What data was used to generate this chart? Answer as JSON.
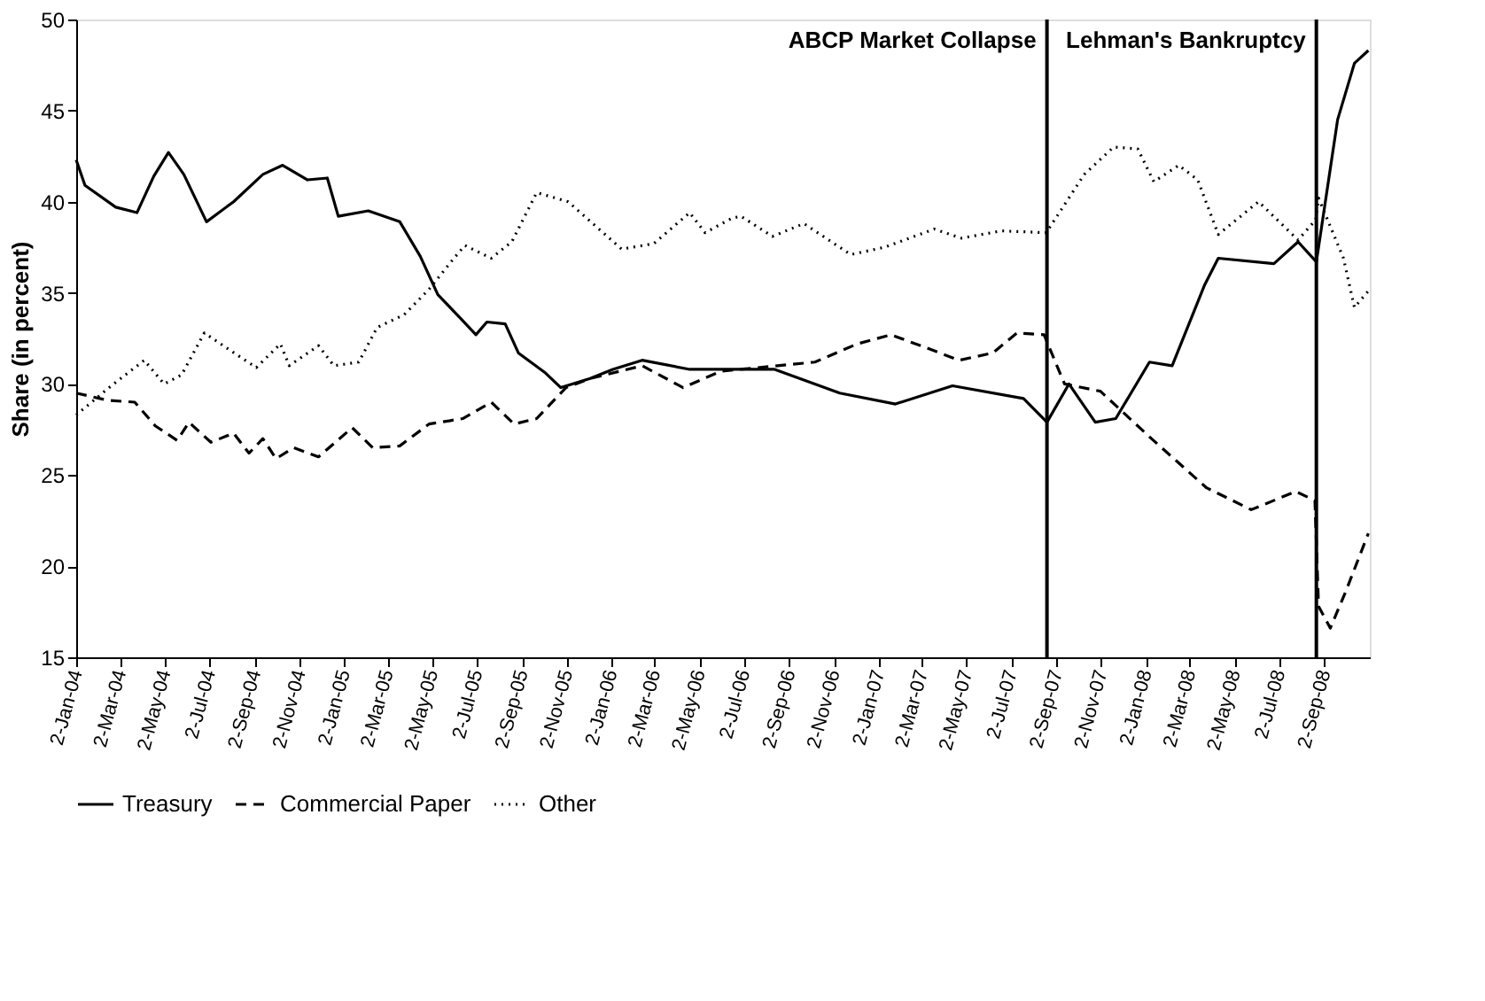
{
  "chart_data": {
    "type": "line",
    "ylabel": "Share (in percent)",
    "xlim": [
      "2004-01-02",
      "2008-11-03"
    ],
    "xticks": [
      {
        "value": "2004-01-02",
        "label": "2-Jan-04"
      },
      {
        "value": "2004-03-02",
        "label": "2-Mar-04"
      },
      {
        "value": "2004-05-02",
        "label": "2-May-04"
      },
      {
        "value": "2004-07-02",
        "label": "2-Jul-04"
      },
      {
        "value": "2004-09-02",
        "label": "2-Sep-04"
      },
      {
        "value": "2004-11-02",
        "label": "2-Nov-04"
      },
      {
        "value": "2005-01-02",
        "label": "2-Jan-05"
      },
      {
        "value": "2005-03-02",
        "label": "2-Mar-05"
      },
      {
        "value": "2005-05-02",
        "label": "2-May-05"
      },
      {
        "value": "2005-07-02",
        "label": "2-Jul-05"
      },
      {
        "value": "2005-09-02",
        "label": "2-Sep-05"
      },
      {
        "value": "2005-11-02",
        "label": "2-Nov-05"
      },
      {
        "value": "2006-01-02",
        "label": "2-Jan-06"
      },
      {
        "value": "2006-03-02",
        "label": "2-Mar-06"
      },
      {
        "value": "2006-05-02",
        "label": "2-May-06"
      },
      {
        "value": "2006-07-02",
        "label": "2-Jul-06"
      },
      {
        "value": "2006-09-02",
        "label": "2-Sep-06"
      },
      {
        "value": "2006-11-02",
        "label": "2-Nov-06"
      },
      {
        "value": "2007-01-02",
        "label": "2-Jan-07"
      },
      {
        "value": "2007-03-02",
        "label": "2-Mar-07"
      },
      {
        "value": "2007-05-02",
        "label": "2-May-07"
      },
      {
        "value": "2007-07-02",
        "label": "2-Jul-07"
      },
      {
        "value": "2007-09-02",
        "label": "2-Sep-07"
      },
      {
        "value": "2007-11-02",
        "label": "2-Nov-07"
      },
      {
        "value": "2008-01-02",
        "label": "2-Jan-08"
      },
      {
        "value": "2008-03-02",
        "label": "2-Mar-08"
      },
      {
        "value": "2008-05-02",
        "label": "2-May-08"
      },
      {
        "value": "2008-07-02",
        "label": "2-Jul-08"
      },
      {
        "value": "2008-09-02",
        "label": "2-Sep-08"
      }
    ],
    "ylim": [
      15,
      50
    ],
    "yticks": [
      15,
      20,
      25,
      30,
      35,
      40,
      45,
      50
    ],
    "grid": false,
    "legend": "bottom",
    "series": [
      {
        "name": "Treasury",
        "color": "#000000",
        "line_style": "solid",
        "x": [
          "2004-01-02",
          "2004-01-14",
          "2004-02-25",
          "2004-03-25",
          "2004-04-17",
          "2004-05-07",
          "2004-05-28",
          "2004-06-28",
          "2004-08-04",
          "2004-09-13",
          "2004-10-10",
          "2004-11-13",
          "2004-12-10",
          "2004-12-25",
          "2005-02-04",
          "2005-03-19",
          "2005-04-16",
          "2005-05-10",
          "2005-06-10",
          "2005-07-01",
          "2005-07-16",
          "2005-08-10",
          "2005-08-28",
          "2005-10-04",
          "2005-10-25",
          "2005-12-04",
          "2006-01-04",
          "2006-02-13",
          "2006-04-19",
          "2006-08-13",
          "2006-11-10",
          "2007-01-25",
          "2007-04-13",
          "2007-07-19",
          "2007-08-20",
          "2007-09-19",
          "2007-10-25",
          "2007-11-22",
          "2008-01-07",
          "2008-02-07",
          "2008-03-22",
          "2008-04-10",
          "2008-06-25",
          "2008-07-28",
          "2008-08-22",
          "2008-09-20",
          "2008-10-13",
          "2008-11-01"
        ],
        "values": [
          42.3,
          40.9,
          39.7,
          39.4,
          41.4,
          42.7,
          41.5,
          38.9,
          40.0,
          41.5,
          42.0,
          41.2,
          41.3,
          39.2,
          39.5,
          38.9,
          37.0,
          34.9,
          33.6,
          32.7,
          33.4,
          33.3,
          31.7,
          30.6,
          29.8,
          30.3,
          30.8,
          31.3,
          30.8,
          30.8,
          29.5,
          28.9,
          29.9,
          29.2,
          27.9,
          30.0,
          27.9,
          28.1,
          31.2,
          31.0,
          35.4,
          36.9,
          36.6,
          37.8,
          36.7,
          44.5,
          47.6,
          48.3
        ]
      },
      {
        "name": "Commercial Paper",
        "color": "#000000",
        "line_style": "dashed",
        "x": [
          "2004-01-02",
          "2004-02-14",
          "2004-03-22",
          "2004-04-19",
          "2004-05-19",
          "2004-06-04",
          "2004-07-04",
          "2004-08-04",
          "2004-08-25",
          "2004-09-13",
          "2004-10-01",
          "2004-10-25",
          "2004-11-28",
          "2005-01-13",
          "2005-02-10",
          "2005-03-19",
          "2005-04-28",
          "2005-06-13",
          "2005-07-22",
          "2005-08-22",
          "2005-09-22",
          "2005-11-01",
          "2005-12-04",
          "2006-02-13",
          "2006-04-10",
          "2006-06-01",
          "2006-10-07",
          "2006-12-04",
          "2007-01-19",
          "2007-03-07",
          "2007-04-22",
          "2007-06-07",
          "2007-07-10",
          "2007-08-16",
          "2007-09-13",
          "2007-11-01",
          "2008-01-07",
          "2008-03-25",
          "2008-05-25",
          "2008-07-25",
          "2008-08-20",
          "2008-08-25",
          "2008-09-10",
          "2008-10-01",
          "2008-11-01"
        ],
        "values": [
          29.5,
          29.1,
          29.0,
          27.7,
          26.9,
          27.9,
          26.8,
          27.3,
          26.2,
          27.0,
          25.9,
          26.5,
          26.0,
          27.6,
          26.5,
          26.6,
          27.8,
          28.1,
          29.0,
          27.8,
          28.1,
          29.8,
          30.3,
          31.0,
          29.8,
          30.7,
          31.2,
          32.2,
          32.7,
          32.0,
          31.3,
          31.7,
          32.8,
          32.7,
          30.0,
          29.6,
          27.1,
          24.3,
          23.1,
          24.1,
          23.6,
          17.8,
          16.6,
          18.6,
          21.8
        ]
      },
      {
        "name": "Other",
        "color": "#000000",
        "line_style": "dotted",
        "x": [
          "2004-01-02",
          "2004-02-19",
          "2004-04-04",
          "2004-05-01",
          "2004-05-25",
          "2004-06-25",
          "2004-08-01",
          "2004-09-04",
          "2004-10-07",
          "2004-10-19",
          "2004-11-28",
          "2004-12-19",
          "2005-01-22",
          "2005-02-16",
          "2005-03-25",
          "2005-04-28",
          "2005-06-01",
          "2005-06-16",
          "2005-07-22",
          "2005-08-19",
          "2005-09-22",
          "2005-11-04",
          "2006-01-16",
          "2006-03-01",
          "2006-04-19",
          "2006-05-10",
          "2006-06-16",
          "2006-06-28",
          "2006-08-10",
          "2006-09-22",
          "2006-11-25",
          "2007-01-10",
          "2007-03-19",
          "2007-04-25",
          "2007-06-19",
          "2007-08-19",
          "2007-10-10",
          "2007-11-19",
          "2007-12-22",
          "2008-01-13",
          "2008-02-16",
          "2008-03-13",
          "2008-04-10",
          "2008-06-04",
          "2008-07-28",
          "2008-08-21",
          "2008-08-25",
          "2008-09-28",
          "2008-10-13",
          "2008-11-01"
        ],
        "values": [
          28.3,
          29.9,
          31.3,
          30.0,
          30.5,
          32.8,
          31.8,
          30.9,
          32.2,
          31.0,
          32.1,
          31.0,
          31.2,
          33.1,
          33.8,
          35.2,
          36.9,
          37.6,
          36.9,
          37.8,
          40.5,
          40.0,
          37.4,
          37.7,
          39.4,
          38.3,
          39.1,
          39.2,
          38.1,
          38.8,
          37.1,
          37.5,
          38.5,
          38.0,
          38.4,
          38.3,
          41.5,
          43.0,
          42.9,
          41.1,
          42.0,
          41.2,
          38.2,
          40.0,
          37.9,
          39.0,
          40.2,
          36.9,
          34.2,
          35.1
        ]
      }
    ],
    "ref_lines": [
      {
        "axis": "x",
        "value": "2007-08-20",
        "label": "ABCP Market Collapse",
        "color": "#000000"
      },
      {
        "axis": "x",
        "value": "2008-08-22",
        "label": "Lehman's Bankruptcy",
        "color": "#000000"
      }
    ]
  }
}
